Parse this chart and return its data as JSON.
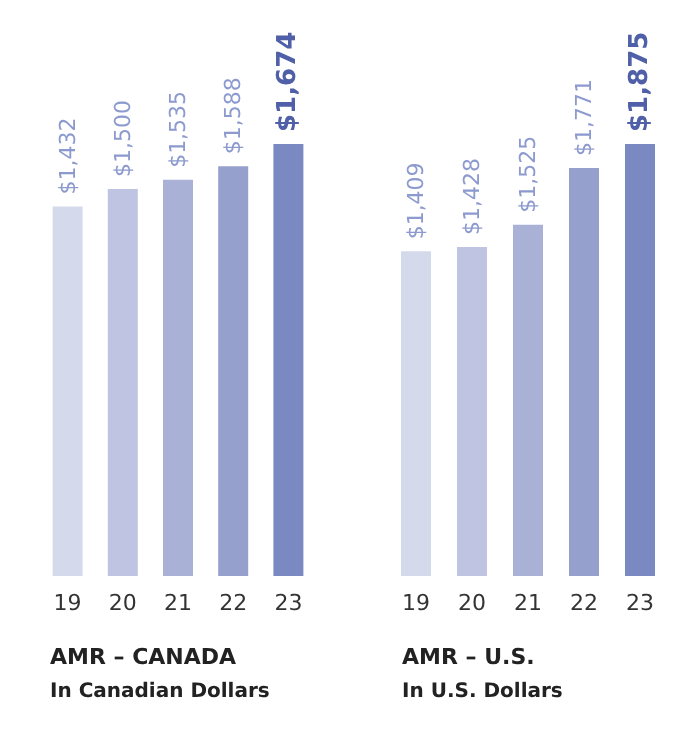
{
  "chart_data": [
    {
      "type": "bar",
      "title": "AMR – CANADA",
      "subtitle": "In Canadian Dollars",
      "categories": [
        "19",
        "20",
        "21",
        "22",
        "23"
      ],
      "values": [
        1432,
        1500,
        1535,
        1588,
        1674
      ],
      "colors": [
        "#d5d9ec",
        "#bec4e1",
        "#a9b1d6",
        "#95a0cd",
        "#7a89c2"
      ],
      "value_labels": [
        "$1,432",
        "$1,500",
        "$1,535",
        "$1,588",
        "$1,674"
      ]
    },
    {
      "type": "bar",
      "title": "AMR – U.S.",
      "subtitle": "In U.S. Dollars",
      "categories": [
        "19",
        "20",
        "21",
        "22",
        "23"
      ],
      "values": [
        1409,
        1428,
        1525,
        1771,
        1875
      ],
      "colors": [
        "#d5d9ec",
        "#bec4e1",
        "#a9b1d6",
        "#95a0cd",
        "#7a89c2"
      ],
      "value_labels": [
        "$1,409",
        "$1,428",
        "$1,525",
        "$1,771",
        "$1,875"
      ]
    }
  ]
}
